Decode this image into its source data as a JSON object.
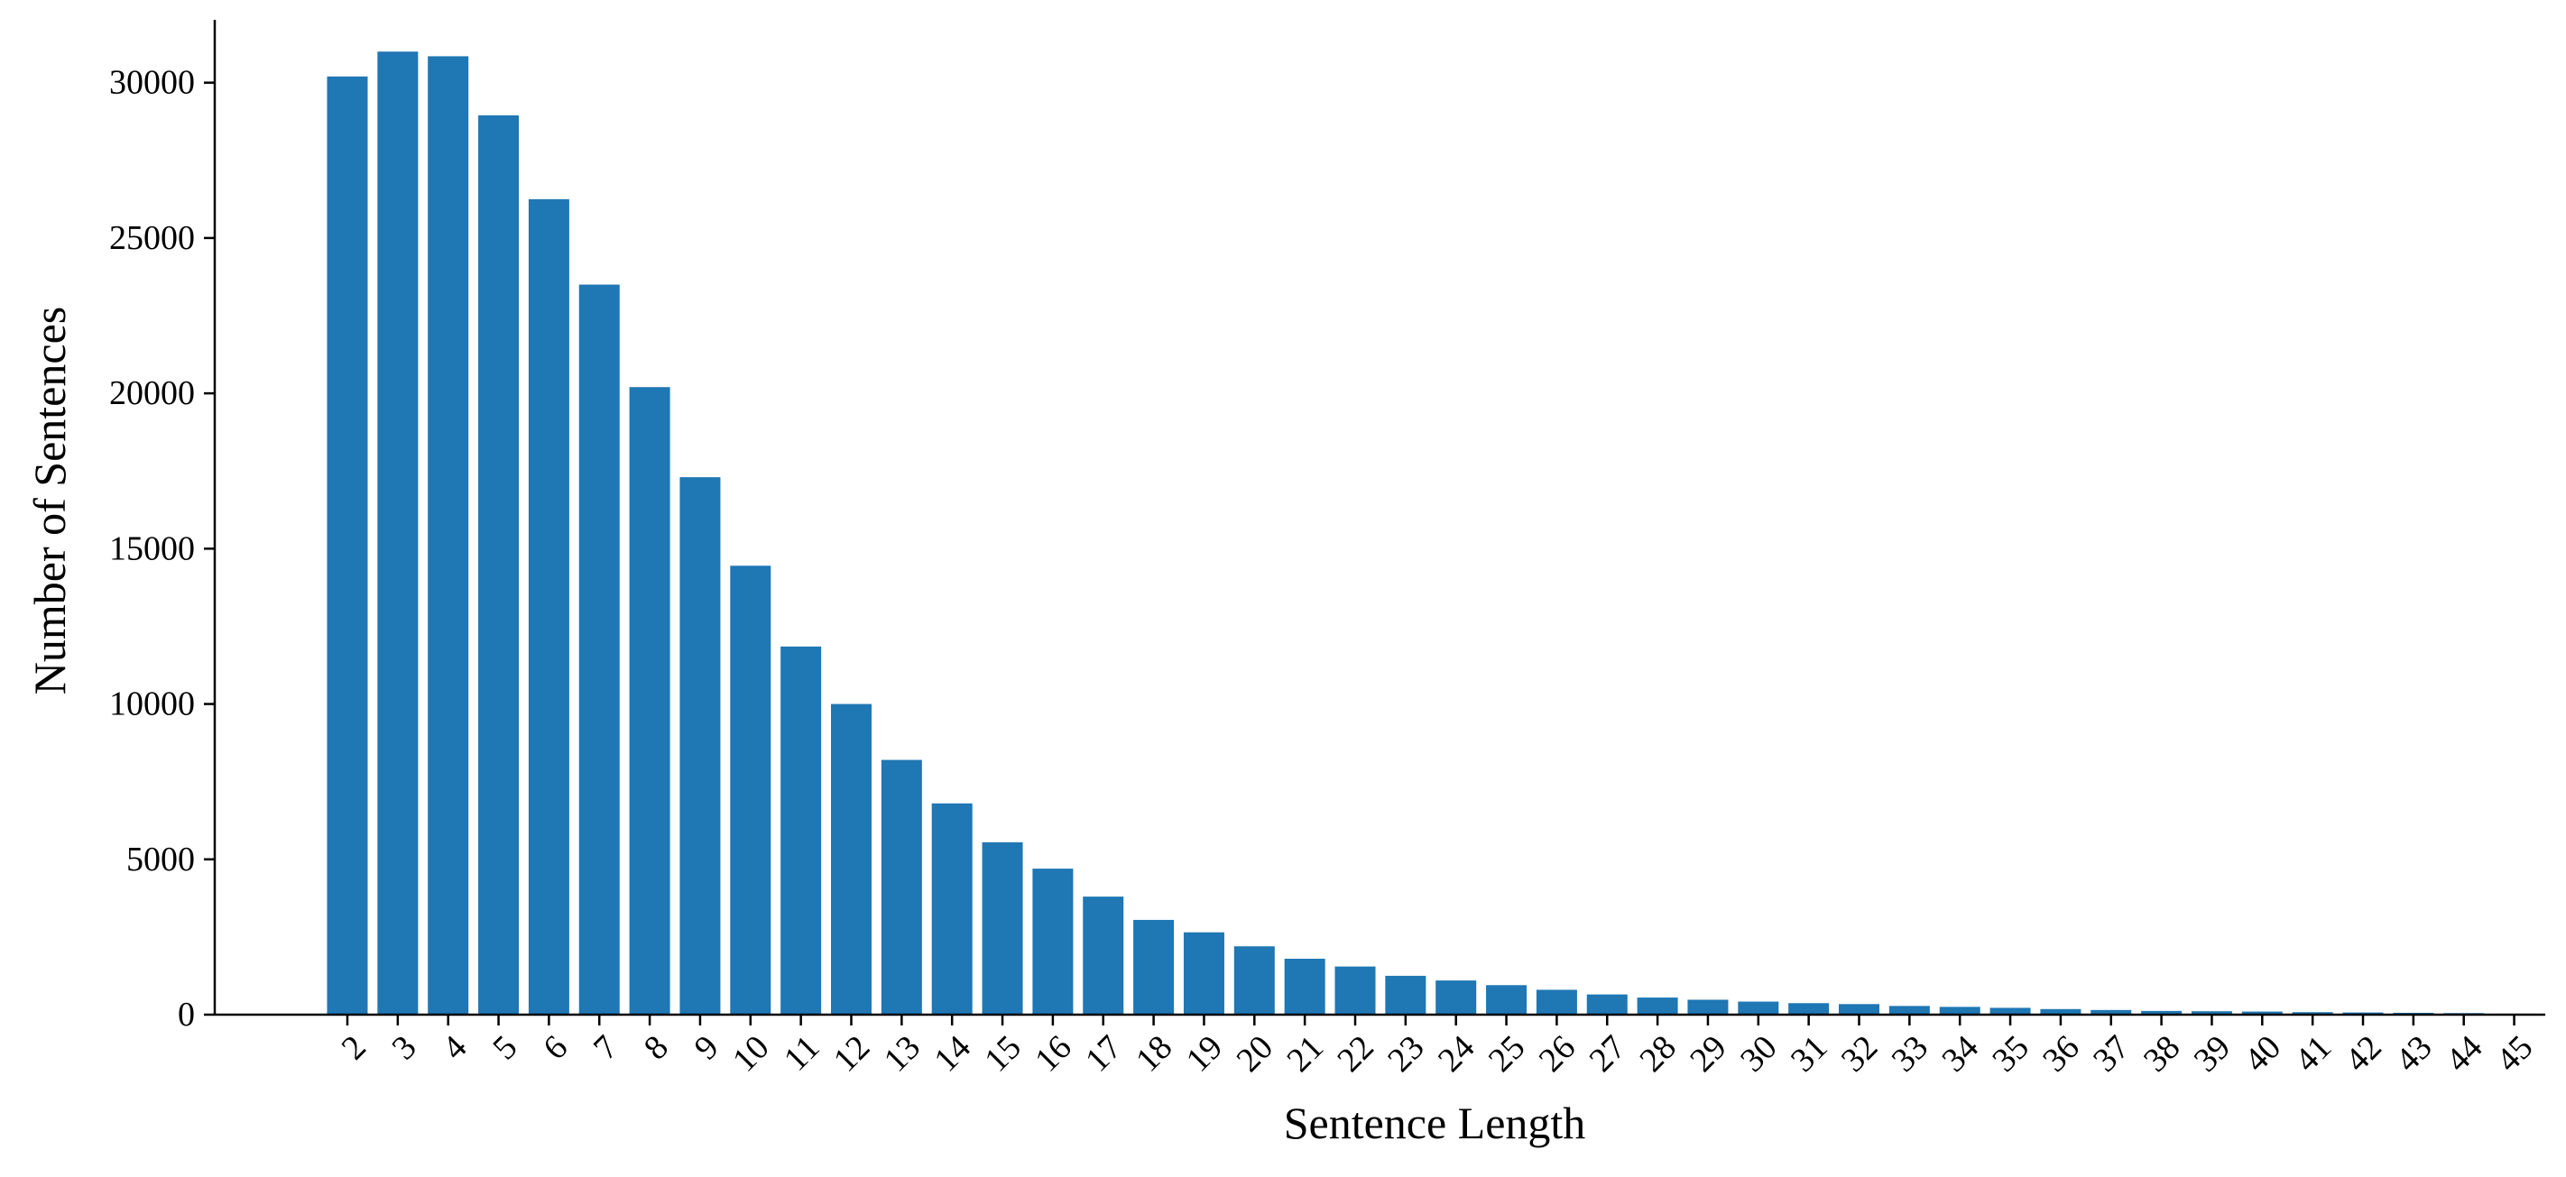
{
  "chart_data": {
    "type": "bar",
    "title": "",
    "xlabel": "Sentence Length",
    "ylabel": "Number of Sentences",
    "categories": [
      "2",
      "3",
      "4",
      "5",
      "6",
      "7",
      "8",
      "9",
      "10",
      "11",
      "12",
      "13",
      "14",
      "15",
      "16",
      "17",
      "18",
      "19",
      "20",
      "21",
      "22",
      "23",
      "24",
      "25",
      "26",
      "27",
      "28",
      "29",
      "30",
      "31",
      "32",
      "33",
      "34",
      "35",
      "36",
      "37",
      "38",
      "39",
      "40",
      "41",
      "42",
      "43",
      "44",
      "45"
    ],
    "values": [
      30200,
      31000,
      30850,
      28950,
      26250,
      23500,
      20200,
      17300,
      14450,
      11850,
      10000,
      8200,
      6800,
      5550,
      4700,
      3800,
      3050,
      2650,
      2200,
      1800,
      1550,
      1250,
      1100,
      950,
      800,
      650,
      550,
      480,
      420,
      370,
      340,
      280,
      250,
      220,
      180,
      150,
      120,
      110,
      100,
      80,
      70,
      60,
      50,
      30
    ],
    "ylim": [
      0,
      31500
    ],
    "yticks": [
      0,
      5000,
      10000,
      15000,
      20000,
      25000,
      30000
    ],
    "grid": false,
    "legend": "none",
    "bar_color": "#1f77b4",
    "axis_color": "#000000"
  }
}
